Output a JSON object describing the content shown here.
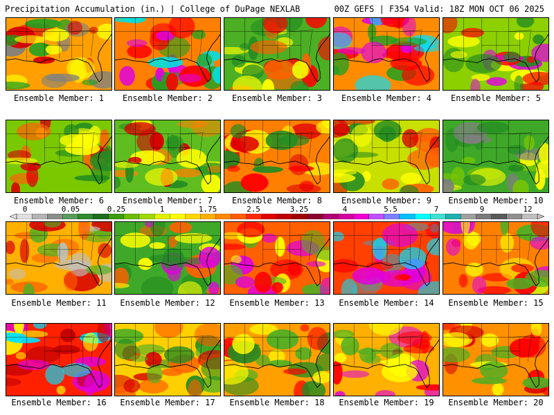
{
  "header": {
    "left": "Precipitation Accumulation (in.) | College of DuPage NEXLAB",
    "right": "00Z GEFS | F354 Valid: 18Z MON OCT 06 2025"
  },
  "panels": [
    {
      "label": "Ensemble Member: 1",
      "base": "#ffa000",
      "blobs": [
        "#22a022",
        "#ffff00",
        "#d80000",
        "#808080"
      ]
    },
    {
      "label": "Ensemble Member: 2",
      "base": "#ff8000",
      "blobs": [
        "#ff0000",
        "#e000e0",
        "#22a022",
        "#00e0e0"
      ]
    },
    {
      "label": "Ensemble Member: 3",
      "base": "#4caf24",
      "blobs": [
        "#ffff00",
        "#228b22",
        "#ff0000",
        "#ff6000"
      ]
    },
    {
      "label": "Ensemble Member: 4",
      "base": "#ff8c00",
      "blobs": [
        "#ff0000",
        "#e000e0",
        "#00e0ff",
        "#22a022"
      ]
    },
    {
      "label": "Ensemble Member: 5",
      "base": "#8cd000",
      "blobs": [
        "#228b22",
        "#ffff00",
        "#ff0000",
        "#e000e0"
      ]
    },
    {
      "label": "Ensemble Member: 6",
      "base": "#7ac800",
      "blobs": [
        "#228b22",
        "#ffff00",
        "#ff6000",
        "#d80000"
      ]
    },
    {
      "label": "Ensemble Member: 7",
      "base": "#5fbd20",
      "blobs": [
        "#228b22",
        "#ffff00",
        "#ff8000",
        "#d80000"
      ]
    },
    {
      "label": "Ensemble Member: 8",
      "base": "#ff8000",
      "blobs": [
        "#228b22",
        "#ff0000",
        "#ffff00",
        "#e00000"
      ]
    },
    {
      "label": "Ensemble Member: 9",
      "base": "#c8e000",
      "blobs": [
        "#228b22",
        "#ffff00",
        "#ff6000",
        "#d80000"
      ]
    },
    {
      "label": "Ensemble Member: 10",
      "base": "#3fa828",
      "blobs": [
        "#228b22",
        "#7ac800",
        "#ffff00",
        "#808080"
      ]
    },
    {
      "label": "Ensemble Member: 11",
      "base": "#ffb000",
      "blobs": [
        "#4caf24",
        "#ff6000",
        "#d80000",
        "#c0c0c0"
      ]
    },
    {
      "label": "Ensemble Member: 12",
      "base": "#3fa828",
      "blobs": [
        "#228b22",
        "#ffff00",
        "#ff6000",
        "#e000e0"
      ]
    },
    {
      "label": "Ensemble Member: 13",
      "base": "#ff6000",
      "blobs": [
        "#ff0000",
        "#e000e0",
        "#ffff00",
        "#4caf24"
      ]
    },
    {
      "label": "Ensemble Member: 14",
      "base": "#ff4000",
      "blobs": [
        "#e000e0",
        "#00e0ff",
        "#ff0000",
        "#808080"
      ]
    },
    {
      "label": "Ensemble Member: 15",
      "base": "#ff8000",
      "blobs": [
        "#ffff00",
        "#ff0000",
        "#e000e0",
        "#4caf24"
      ]
    },
    {
      "label": "Ensemble Member: 16",
      "base": "#ff2000",
      "blobs": [
        "#e000e0",
        "#c00000",
        "#ffff00",
        "#00e0ff"
      ]
    },
    {
      "label": "Ensemble Member: 17",
      "base": "#ffd000",
      "blobs": [
        "#4caf24",
        "#ff6000",
        "#d80000",
        "#228b22"
      ]
    },
    {
      "label": "Ensemble Member: 18",
      "base": "#ffa000",
      "blobs": [
        "#228b22",
        "#ff0000",
        "#ffff00",
        "#4caf24"
      ]
    },
    {
      "label": "Ensemble Member: 19",
      "base": "#ffb000",
      "blobs": [
        "#4caf24",
        "#ff0000",
        "#e000e0",
        "#ffff00"
      ]
    },
    {
      "label": "Ensemble Member: 20",
      "base": "#ff9000",
      "blobs": [
        "#ffff00",
        "#ff0000",
        "#d80000",
        "#4caf24"
      ]
    }
  ],
  "legend": {
    "ticks": [
      "0",
      "0.05",
      "0.25",
      "1",
      "1.75",
      "2.5",
      "3.25",
      "4",
      "5.5",
      "7",
      "9",
      "12"
    ],
    "colors": [
      "#e0e0e0",
      "#b4b4b4",
      "#8c8c8c",
      "#5a9c5a",
      "#2e8b2e",
      "#1e6e1e",
      "#3c9c0a",
      "#6cbc00",
      "#a0d800",
      "#e0f000",
      "#ffff00",
      "#ffd800",
      "#ffb000",
      "#ff8800",
      "#ff5c00",
      "#ff2a00",
      "#e00000",
      "#c00000",
      "#a00000",
      "#8c0030",
      "#b00070",
      "#d400a0",
      "#f000d0",
      "#c050ff",
      "#8080ff",
      "#00c0ff",
      "#00ffff",
      "#40e0d0",
      "#20b0b0",
      "#a0a0a0",
      "#7a7a7a",
      "#5a5a5a",
      "#909090",
      "#c0c0c0"
    ]
  }
}
